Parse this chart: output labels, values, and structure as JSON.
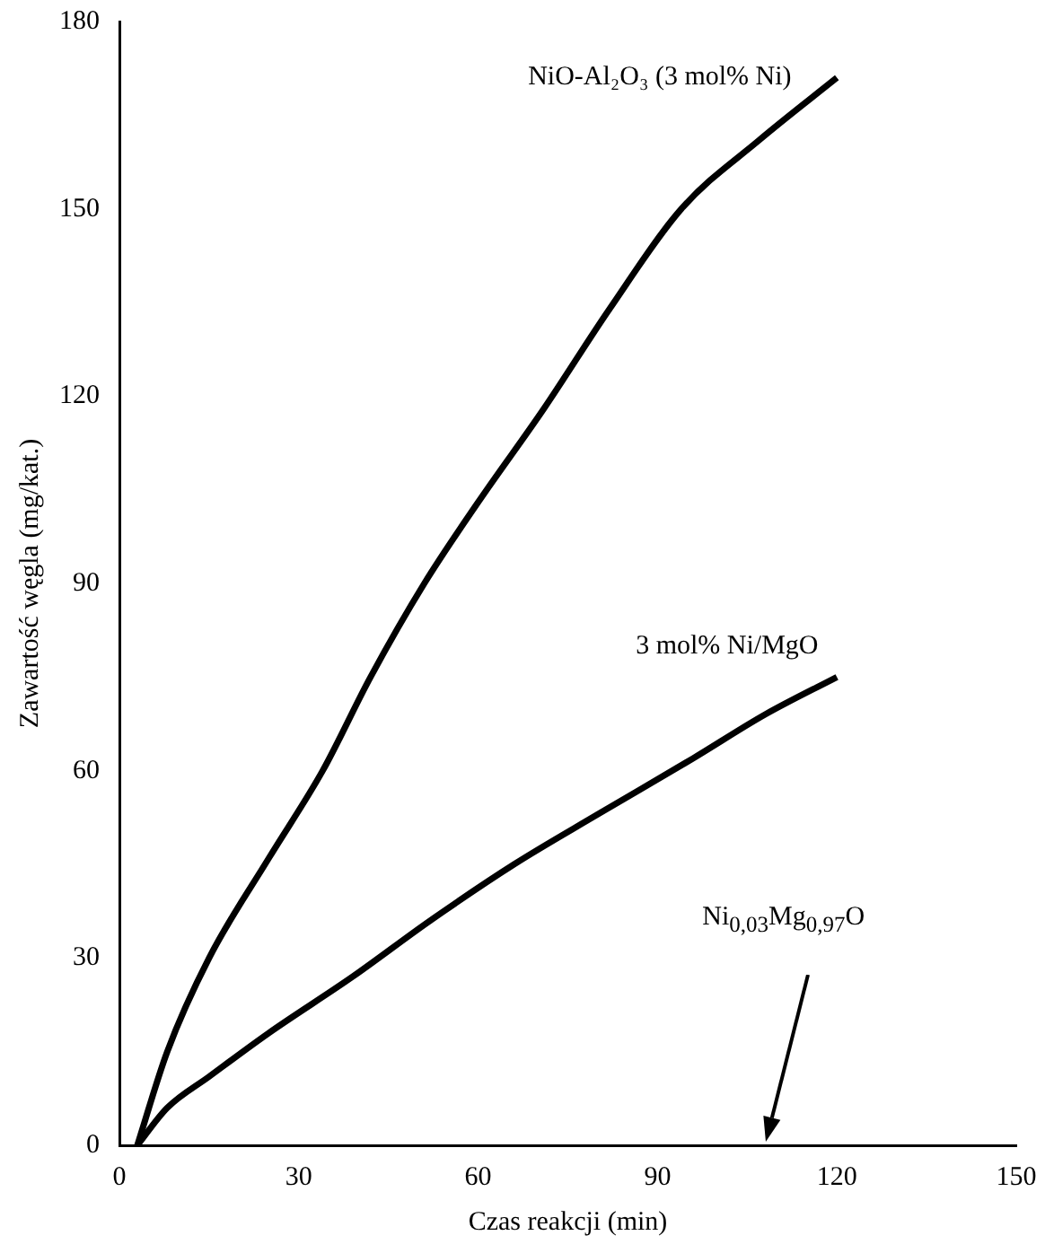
{
  "chart_data": {
    "type": "line",
    "xlabel": "Czas reakcji (min)",
    "ylabel": "Zawartość węgla (mg/kat.)",
    "xlim": [
      0,
      150
    ],
    "xticks": [
      0,
      30,
      60,
      90,
      120,
      150
    ],
    "ylim": [
      0,
      180
    ],
    "yticks": [
      0,
      30,
      60,
      90,
      120,
      150,
      180
    ],
    "grid": false,
    "legend": false,
    "marker": "none",
    "line_style": "solid",
    "series": [
      {
        "name": "NiO-Al₂O₃ (3 mol% Ni)",
        "color": "#000000",
        "x": [
          3,
          8,
          15,
          25,
          34,
          42,
          51,
          60,
          71,
          82,
          94,
          107,
          120
        ],
        "values": [
          0,
          15,
          30,
          46,
          60,
          75,
          90,
          103,
          118,
          134,
          150,
          161,
          171
        ]
      },
      {
        "name": "3 mol% Ni/MgO",
        "color": "#000000",
        "x": [
          3,
          8,
          15,
          25,
          39,
          52,
          66,
          80,
          96,
          108,
          120
        ],
        "values": [
          0,
          6,
          11,
          18,
          27,
          36,
          45,
          53,
          62,
          69,
          75
        ]
      }
    ],
    "annotations": [
      "Ni$_{0,03}$Mg$_{0,97}$O"
    ]
  }
}
